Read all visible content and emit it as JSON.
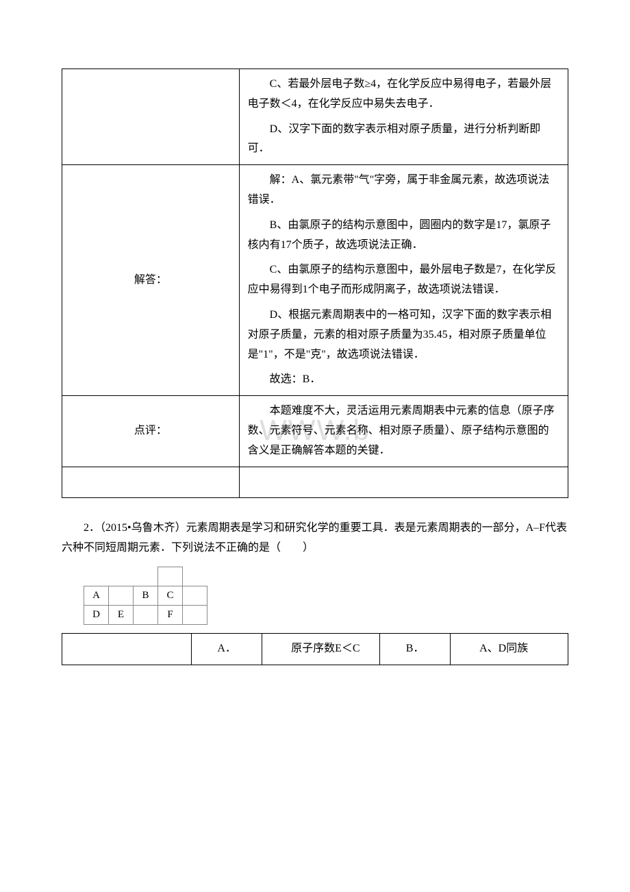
{
  "watermark": "WWW.b",
  "table1": {
    "row_analysis": {
      "label": "",
      "paras": [
        "C、若最外层电子数≥4，在化学反应中易得电子，若最外层电子数＜4，在化学反应中易失去电子．",
        "D、汉字下面的数字表示相对原子质量，进行分析判断即可．"
      ]
    },
    "row_solution": {
      "label": "解答：",
      "paras": [
        "解：A、氯元素带\"气\"字旁，属于非金属元素，故选项说法错误．",
        "B、由氯原子的结构示意图中，圆圈内的数字是17，氯原子核内有17个质子，故选项说法正确．",
        "C、由氯原子的结构示意图中，最外层电子数是7，在化学反应中易得到1个电子而形成阴离子，故选项说法错误．",
        "D、根据元素周期表中的一格可知，汉字下面的数字表示相对原子质量，元素的相对原子质量为35.45，相对原子质量单位是\"1\"，不是\"克\"，故选项说法错误．",
        "故选：B．"
      ]
    },
    "row_review": {
      "label": "点评：",
      "paras": [
        "本题难度不大，灵活运用元素周期表中元素的信息（原子序数、元素符号、元素名称、相对原子质量）、原子结构示意图的含义是正确解答本题的关键．"
      ]
    }
  },
  "question2": {
    "text": "2．（2015•乌鲁木齐）元素周期表是学习和研究化学的重要工具．表是元素周期表的一部分，A–F代表六种不同短周期元素．下列说法不正确的是（　　）",
    "diagram": {
      "cells": [
        [
          "",
          "",
          "",
          "",
          ""
        ],
        [
          "A",
          "",
          "B",
          "C",
          ""
        ],
        [
          "D",
          "E",
          "",
          "F",
          ""
        ]
      ]
    },
    "options": {
      "A": {
        "letter": "A．",
        "text": "原子序数E＜C"
      },
      "B": {
        "letter": "B．",
        "text": "A、D同族"
      }
    }
  }
}
